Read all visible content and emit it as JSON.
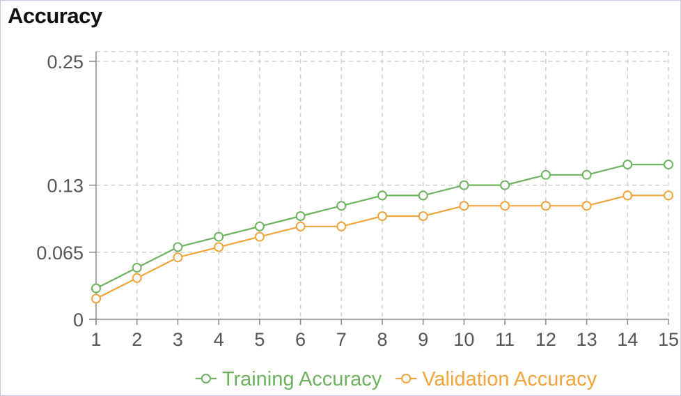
{
  "panel": {
    "title": "Accuracy"
  },
  "chart_data": {
    "type": "line",
    "title": "Accuracy",
    "x": [
      1,
      2,
      3,
      4,
      5,
      6,
      7,
      8,
      9,
      10,
      11,
      12,
      13,
      14,
      15
    ],
    "x_tick_labels": [
      "1",
      "2",
      "3",
      "4",
      "5",
      "6",
      "7",
      "8",
      "9",
      "10",
      "11",
      "12",
      "13",
      "14",
      "15"
    ],
    "y_ticks": [
      0,
      0.065,
      0.13,
      0.25
    ],
    "y_tick_labels": [
      "0",
      "0.065",
      "0.13",
      "0.25"
    ],
    "ylim": [
      0,
      0.25
    ],
    "xlim": [
      1,
      15
    ],
    "grid": true,
    "legend_position": "bottom",
    "series": [
      {
        "name": "Training Accuracy",
        "color": "#6db35f",
        "values": [
          0.03,
          0.05,
          0.07,
          0.08,
          0.09,
          0.1,
          0.11,
          0.12,
          0.12,
          0.13,
          0.13,
          0.14,
          0.14,
          0.15,
          0.15
        ]
      },
      {
        "name": "Validation Accuracy",
        "color": "#f0a43c",
        "values": [
          0.02,
          0.04,
          0.06,
          0.07,
          0.08,
          0.09,
          0.09,
          0.1,
          0.1,
          0.11,
          0.11,
          0.11,
          0.11,
          0.12,
          0.12
        ]
      }
    ]
  }
}
